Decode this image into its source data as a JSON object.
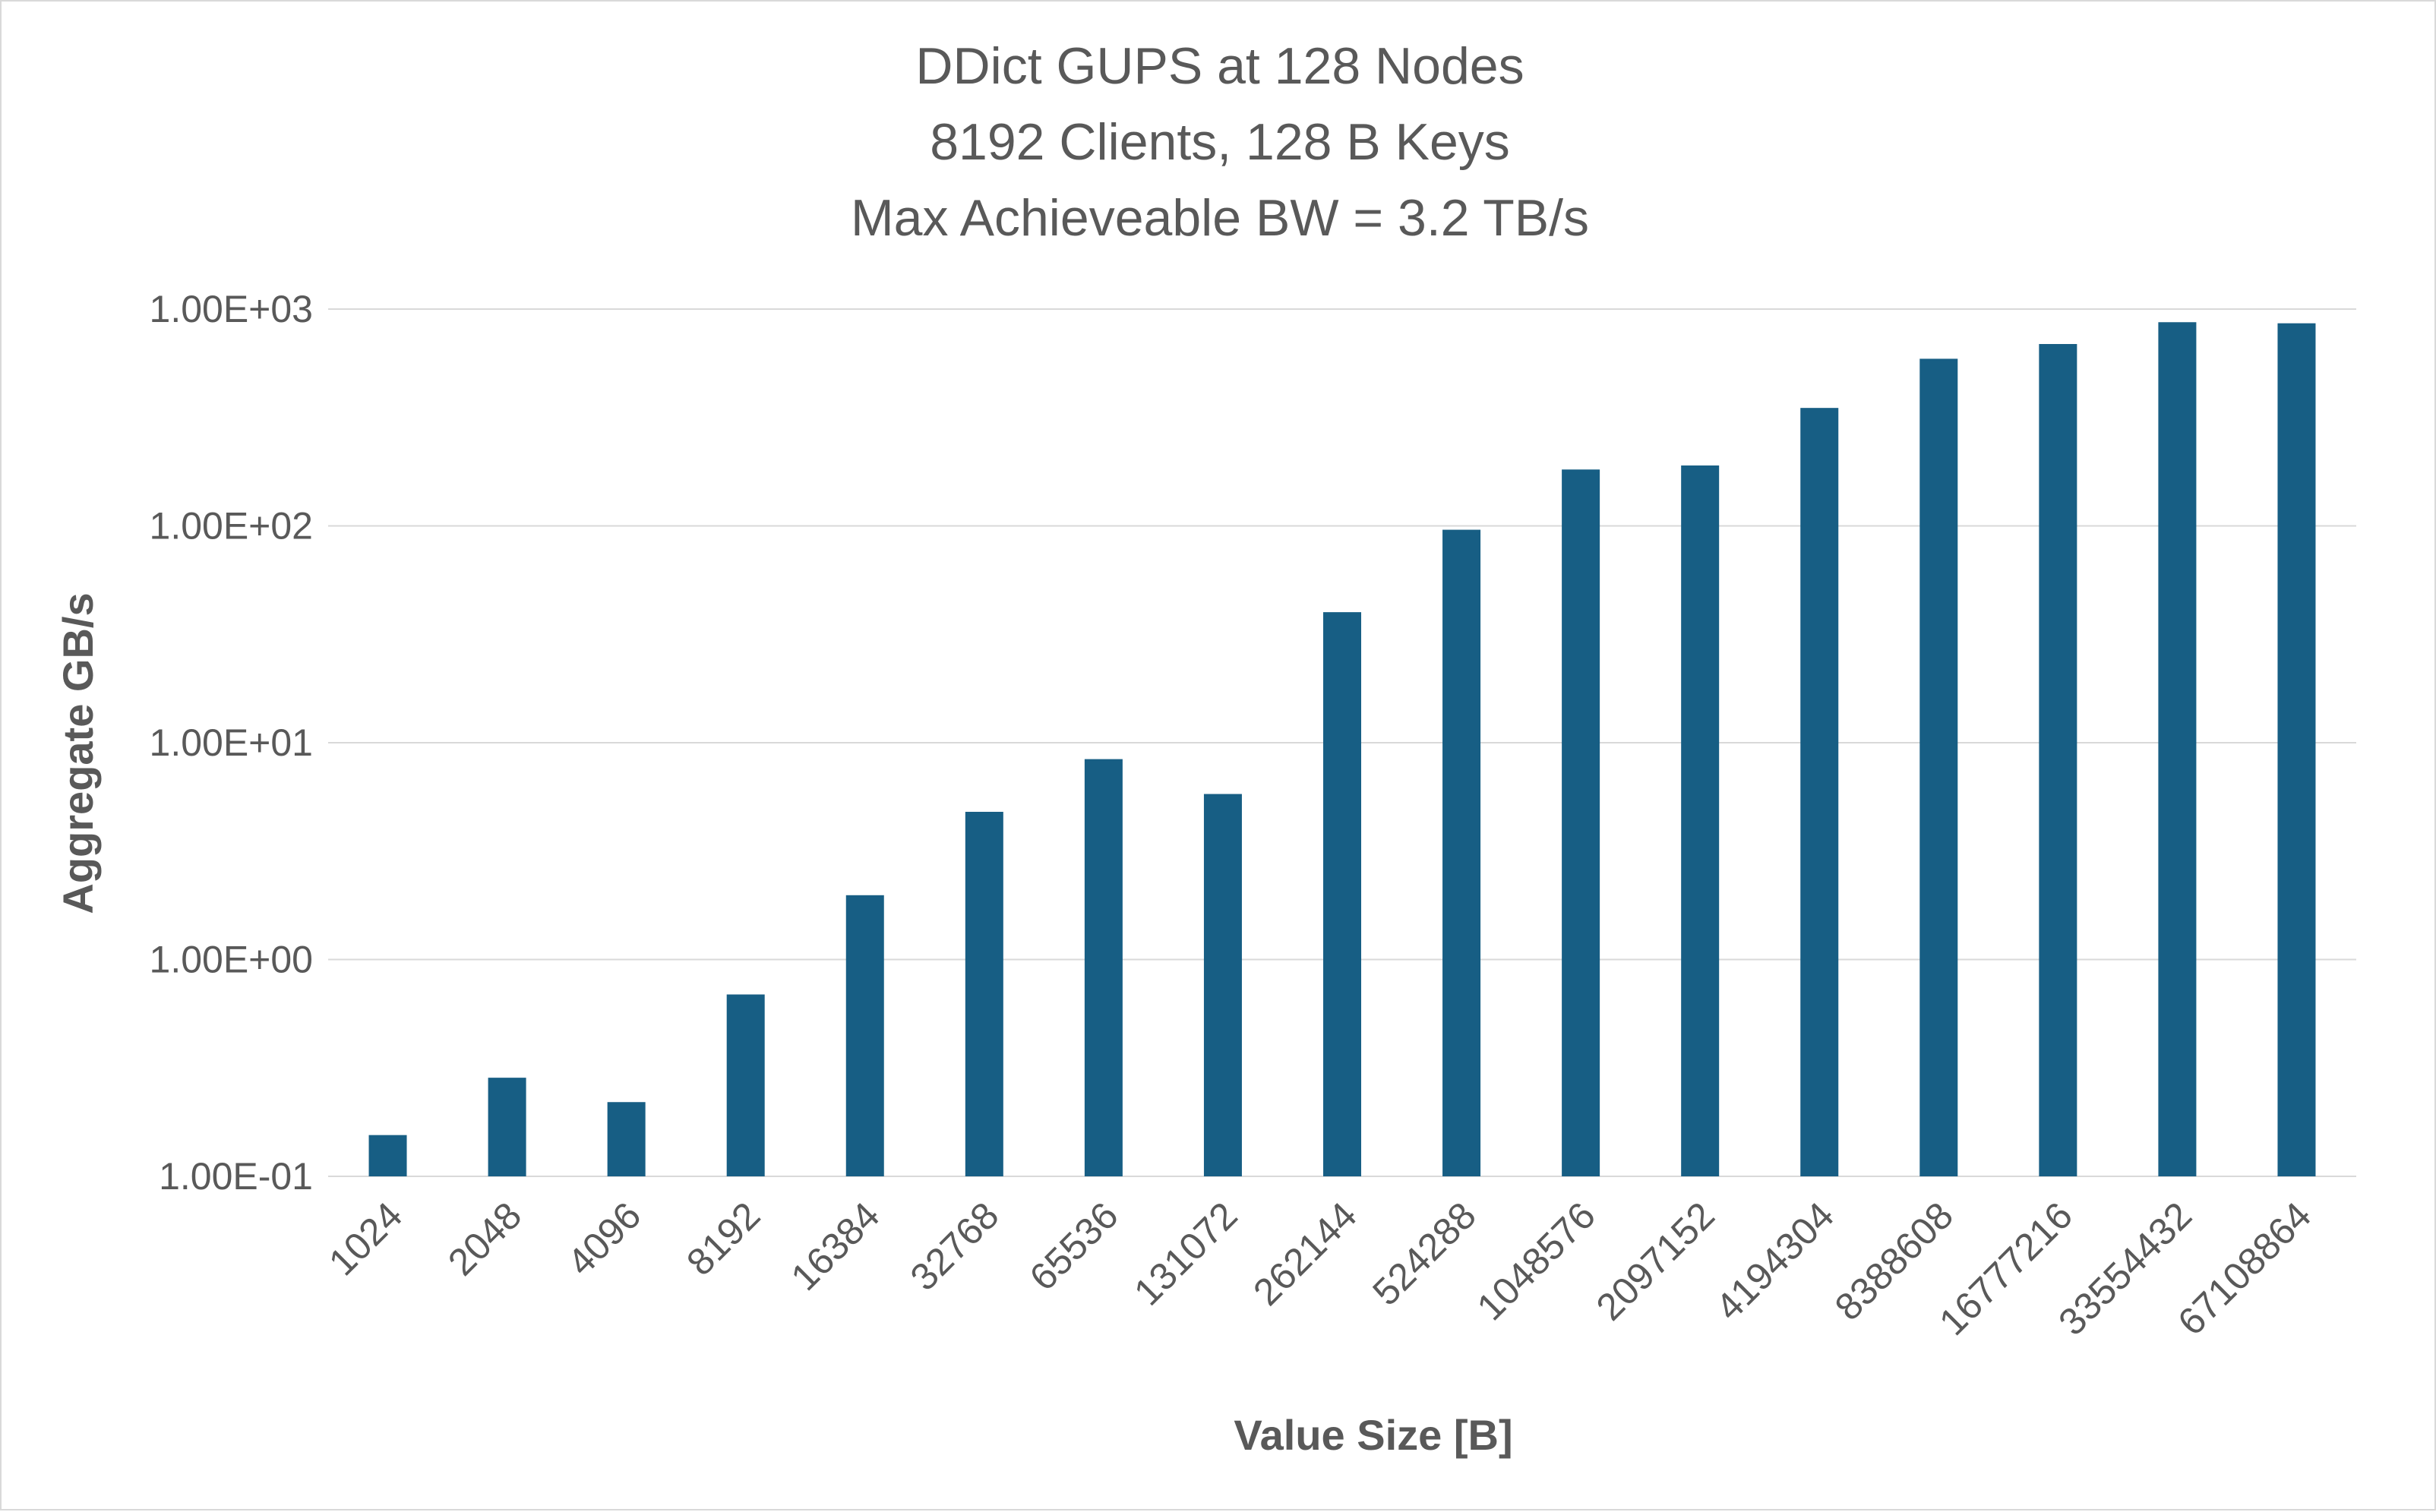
{
  "chart_data": {
    "type": "bar",
    "title_lines": [
      "DDict GUPS at 128 Nodes",
      "8192 Clients, 128 B Keys",
      "Max Achieveable BW = 3.2 TB/s"
    ],
    "xlabel": "Value Size [B]",
    "ylabel": "Aggregate GB/s",
    "yscale": "log",
    "ylim": [
      0.1,
      1000
    ],
    "yticks": [
      0.1,
      1,
      10,
      100,
      1000
    ],
    "ytick_labels": [
      "1.00E-01",
      "1.00E+00",
      "1.00E+01",
      "1.00E+02",
      "1.00E+03"
    ],
    "grid": true,
    "legend": "none",
    "bar_color": "#175e84",
    "categories": [
      "1024",
      "2048",
      "4096",
      "8192",
      "16384",
      "32768",
      "65536",
      "131072",
      "262144",
      "524288",
      "1048576",
      "2097152",
      "4194304",
      "8388608",
      "16777216",
      "33554432",
      "67108864"
    ],
    "values": [
      0.155,
      0.285,
      0.22,
      0.69,
      1.98,
      4.8,
      8.4,
      5.8,
      40,
      96,
      182,
      190,
      350,
      590,
      690,
      870,
      860
    ]
  }
}
